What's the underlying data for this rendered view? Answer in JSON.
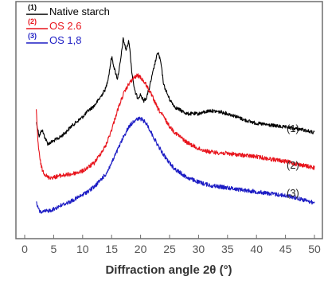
{
  "chart_data": {
    "type": "line",
    "title": "",
    "xlabel": "Diffraction angle 2θ (°)",
    "ylabel": "",
    "xlim": [
      0,
      50
    ],
    "xticks": [
      0,
      5,
      10,
      15,
      20,
      25,
      30,
      35,
      40,
      45,
      50
    ],
    "y_axis_shown": false,
    "grid": false,
    "legend_position": "top-left",
    "series": [
      {
        "name": "Native starch",
        "legend_number": "(1)",
        "curve_label": "(1)",
        "color": "#000000",
        "noise": 2.2,
        "x": [
          2,
          2.5,
          3,
          3.5,
          4,
          5,
          6,
          7,
          8,
          9,
          10,
          11,
          12,
          13,
          14,
          14.5,
          15,
          15.5,
          16,
          16.5,
          17,
          17.5,
          18,
          18.5,
          19,
          19.5,
          20,
          20.5,
          21,
          21.5,
          22,
          22.5,
          23,
          23.5,
          24,
          25,
          26,
          27,
          28,
          30,
          32,
          34,
          36,
          38,
          40,
          42,
          44,
          46,
          48,
          50
        ],
        "y": [
          0.63,
          0.54,
          0.58,
          0.53,
          0.49,
          0.51,
          0.53,
          0.56,
          0.6,
          0.63,
          0.66,
          0.7,
          0.73,
          0.78,
          0.84,
          0.92,
          1.04,
          0.96,
          0.9,
          1.0,
          1.15,
          1.08,
          1.14,
          0.94,
          0.82,
          0.78,
          0.8,
          0.76,
          0.78,
          0.84,
          0.92,
          1.0,
          1.07,
          1.0,
          0.86,
          0.77,
          0.72,
          0.7,
          0.68,
          0.68,
          0.7,
          0.69,
          0.67,
          0.64,
          0.62,
          0.61,
          0.6,
          0.59,
          0.58,
          0.56
        ]
      },
      {
        "name": "OS 2.6",
        "legend_number": "(2)",
        "curve_label": "(2)",
        "color": "#e8141c",
        "noise": 2.6,
        "x": [
          2,
          2.3,
          2.6,
          3,
          3.5,
          4,
          5,
          6,
          8,
          10,
          12,
          14,
          15,
          16,
          17,
          18,
          19,
          19.5,
          20,
          21,
          22,
          23,
          24,
          25,
          26,
          28,
          30,
          32,
          35,
          40,
          45,
          50
        ],
        "y": [
          0.7,
          0.5,
          0.4,
          0.33,
          0.3,
          0.28,
          0.28,
          0.29,
          0.3,
          0.32,
          0.37,
          0.48,
          0.58,
          0.7,
          0.8,
          0.87,
          0.91,
          0.92,
          0.91,
          0.86,
          0.79,
          0.71,
          0.66,
          0.6,
          0.56,
          0.5,
          0.46,
          0.44,
          0.43,
          0.41,
          0.38,
          0.34
        ]
      },
      {
        "name": "OS 1,8",
        "legend_number": "(3)",
        "curve_label": "(3)",
        "color": "#1c1cc4",
        "noise": 2.6,
        "x": [
          2,
          2.5,
          3,
          4,
          5,
          6,
          8,
          10,
          12,
          14,
          15,
          16,
          17,
          18,
          19,
          20,
          21,
          22,
          23,
          24,
          25,
          26,
          28,
          30,
          32,
          34,
          36,
          38,
          40,
          42,
          44,
          46,
          48,
          50
        ],
        "y": [
          0.12,
          0.07,
          0.06,
          0.07,
          0.08,
          0.1,
          0.13,
          0.17,
          0.22,
          0.3,
          0.37,
          0.45,
          0.53,
          0.6,
          0.64,
          0.65,
          0.62,
          0.55,
          0.48,
          0.42,
          0.37,
          0.33,
          0.28,
          0.25,
          0.23,
          0.22,
          0.21,
          0.2,
          0.19,
          0.18,
          0.17,
          0.16,
          0.14,
          0.12
        ]
      }
    ]
  }
}
